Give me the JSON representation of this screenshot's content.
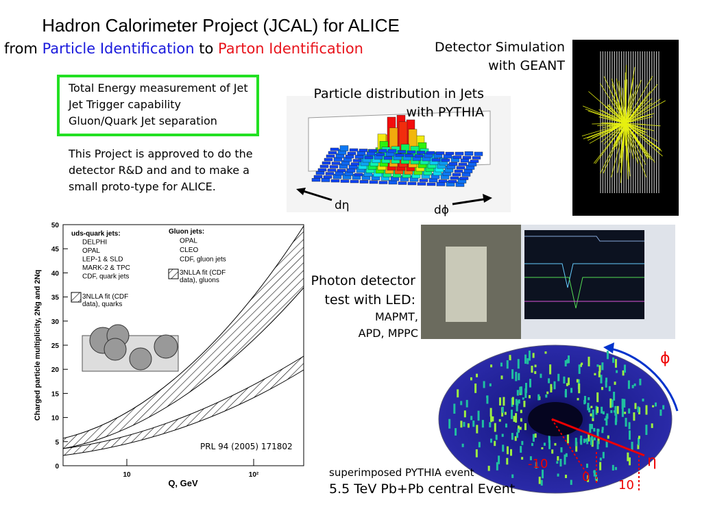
{
  "header": {
    "title": "Hadron Calorimeter Project (JCAL) for ALICE",
    "subtitle": [
      "from",
      "Particle Identification",
      "to",
      "Parton Identification"
    ]
  },
  "box": {
    "lines": [
      "Total Energy measurement of Jet",
      "Jet Trigger capability",
      "Gluon/Quark Jet separation"
    ]
  },
  "paragraph": {
    "lines": [
      "This Project is approved to do the",
      "detector R&D and and to make a",
      "small proto-type for ALICE."
    ]
  },
  "geant": {
    "caption": [
      "Detector Simulation",
      "with GEANT"
    ]
  },
  "pythia": {
    "caption": [
      "Particle distribution in Jets",
      "with PYTHIA"
    ],
    "deta": "dη",
    "dphi": "dϕ"
  },
  "photon": {
    "caption": [
      "Photon detector",
      "test with LED:",
      "MAPMT,",
      "APD, MPPC"
    ]
  },
  "multiplicity": {
    "y_label": "Charged particle multiplicity, 2Ng and 2Nq",
    "x_label": "Q, GeV",
    "yticks": [
      0,
      5,
      10,
      15,
      20,
      25,
      30,
      35,
      40,
      45,
      50
    ],
    "xticks": [
      "10",
      "10²"
    ],
    "quark_legend": [
      "uds-quark jets:",
      "DELPHI",
      "OPAL",
      "LEP-1 & SLD",
      "MARK-2 & TPC",
      "CDF, quark jets",
      "3NLLA fit (CDF",
      "data), quarks"
    ],
    "gluon_legend": [
      "Gluon jets:",
      "OPAL",
      "CLEO",
      "CDF, gluon jets",
      "3NLLA fit (CDF",
      "data), gluons"
    ],
    "reference": "PRL 94 (2005) 171802"
  },
  "event": {
    "caption": [
      "superimposed PYTHIA event",
      "5.5 TeV Pb+Pb central Event"
    ],
    "phi": "ϕ",
    "eta": "η",
    "labels": [
      "-10",
      "0",
      "10"
    ]
  }
}
